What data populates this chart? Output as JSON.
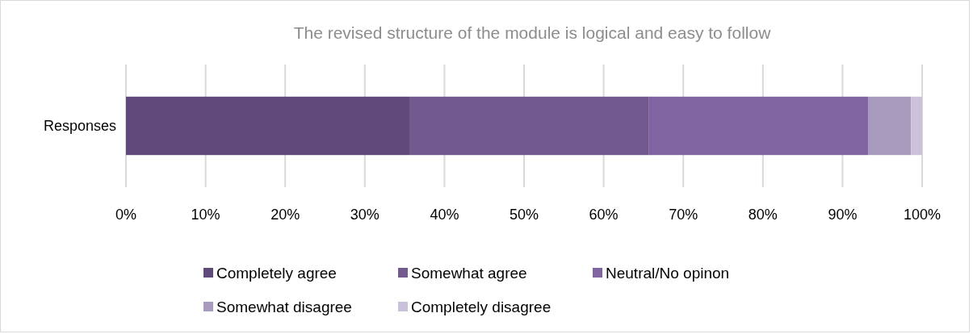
{
  "chart_data": {
    "type": "bar",
    "orientation": "horizontal",
    "stacked": true,
    "title": "The revised structure of the module is logical and easy to follow",
    "categories": [
      "Responses"
    ],
    "series": [
      {
        "name": "Completely agree",
        "color": "#604a7b",
        "values": [
          35.6
        ]
      },
      {
        "name": "Somewhat agree",
        "color": "#725a8f",
        "values": [
          30.1
        ]
      },
      {
        "name": "Neutral/No opinon",
        "color": "#8064a2",
        "values": [
          27.5
        ]
      },
      {
        "name": "Somewhat disagree",
        "color": "#a99bbd",
        "values": [
          5.4
        ]
      },
      {
        "name": "Completely disagree",
        "color": "#ccc1da",
        "values": [
          1.4
        ]
      }
    ],
    "xlim": [
      0,
      100
    ],
    "xticks": [
      {
        "value": 0,
        "label": "0%"
      },
      {
        "value": 10,
        "label": "10%"
      },
      {
        "value": 20,
        "label": "20%"
      },
      {
        "value": 30,
        "label": "30%"
      },
      {
        "value": 40,
        "label": "40%"
      },
      {
        "value": 50,
        "label": "50%"
      },
      {
        "value": 60,
        "label": "60%"
      },
      {
        "value": 70,
        "label": "70%"
      },
      {
        "value": 80,
        "label": "80%"
      },
      {
        "value": 90,
        "label": "90%"
      },
      {
        "value": 100,
        "label": "100%"
      }
    ],
    "grid": "x",
    "legend": "bottom"
  }
}
